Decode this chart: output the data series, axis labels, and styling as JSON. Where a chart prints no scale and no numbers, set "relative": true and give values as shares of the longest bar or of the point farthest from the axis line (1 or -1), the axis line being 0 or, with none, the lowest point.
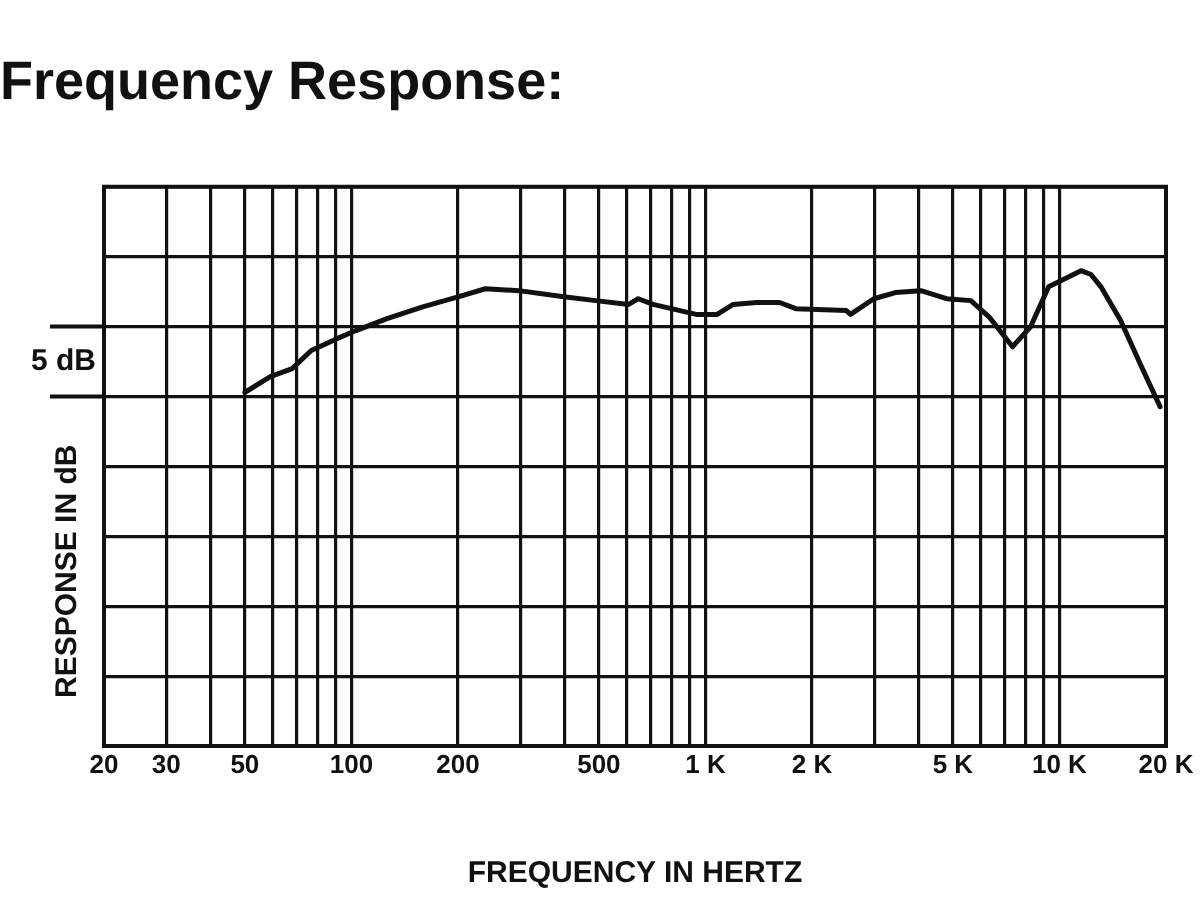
{
  "chart_data": {
    "type": "line",
    "title": "Frequency Response:",
    "xlabel": "FREQUENCY IN HERTZ",
    "ylabel": "RESPONSE IN dB",
    "annotations": [
      "5 dB"
    ],
    "relative": true,
    "log": "x",
    "grid": true,
    "marker": "none",
    "line_style": "solid",
    "legend": false,
    "xlim": [
      20,
      20000
    ],
    "xticks": [
      20,
      30,
      {
        "value": 40,
        "label": null
      },
      50,
      {
        "value": 60,
        "label": null
      },
      {
        "value": 70,
        "label": null
      },
      {
        "value": 80,
        "label": null
      },
      {
        "value": 90,
        "label": null
      },
      100,
      200,
      {
        "value": 300,
        "label": null
      },
      {
        "value": 400,
        "label": null
      },
      500,
      {
        "value": 600,
        "label": null
      },
      {
        "value": 700,
        "label": null
      },
      {
        "value": 800,
        "label": null
      },
      {
        "value": 900,
        "label": null
      },
      {
        "value": 1000,
        "label": "1 K"
      },
      {
        "value": 2000,
        "label": "2 K"
      },
      {
        "value": 3000,
        "label": null
      },
      {
        "value": 4000,
        "label": null
      },
      {
        "value": 5000,
        "label": "5 K"
      },
      {
        "value": 6000,
        "label": null
      },
      {
        "value": 7000,
        "label": null
      },
      {
        "value": 8000,
        "label": null
      },
      {
        "value": 9000,
        "label": null
      },
      {
        "value": 10000,
        "label": "10 K"
      },
      {
        "value": 20000,
        "label": "20 K"
      }
    ],
    "series": [
      {
        "color": "#111111",
        "x": [
          50,
          59,
          68,
          77,
          91,
          103,
          126,
          159,
          200,
          239,
          297,
          398,
          490,
          607,
          646,
          711,
          942,
          1079,
          1198,
          1393,
          1620,
          1800,
          2500,
          2570,
          2990,
          3440,
          4060,
          4800,
          5620,
          6325,
          7370,
          8290,
          9320,
          11510,
          12280,
          13100,
          14890,
          16930,
          19240
        ],
        "values": [
          0.744,
          0.777,
          0.794,
          0.832,
          0.857,
          0.874,
          0.899,
          0.924,
          0.945,
          0.962,
          0.958,
          0.945,
          0.937,
          0.929,
          0.941,
          0.929,
          0.908,
          0.908,
          0.929,
          0.933,
          0.933,
          0.92,
          0.916,
          0.908,
          0.941,
          0.954,
          0.958,
          0.941,
          0.937,
          0.903,
          0.84,
          0.882,
          0.966,
          1,
          0.992,
          0.966,
          0.895,
          0.803,
          0.714
        ]
      }
    ]
  }
}
